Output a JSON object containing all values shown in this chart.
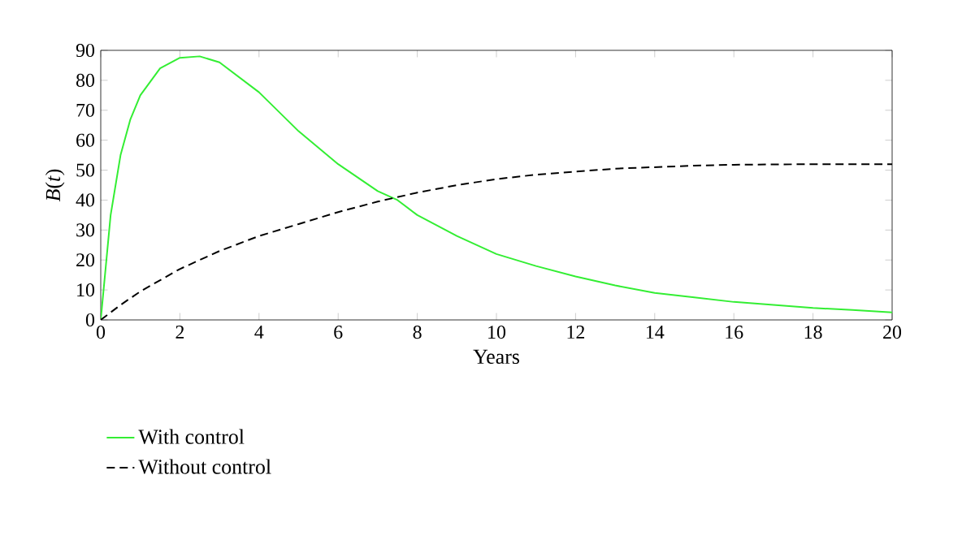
{
  "chart_data": {
    "type": "line",
    "xlabel": "Years",
    "ylabel": "*B*(*t*)",
    "xlim": [
      0,
      20
    ],
    "ylim": [
      0,
      90
    ],
    "xticks": [
      0,
      2,
      4,
      6,
      8,
      10,
      12,
      14,
      16,
      18,
      20
    ],
    "yticks": [
      0,
      10,
      20,
      30,
      40,
      50,
      60,
      70,
      80,
      90
    ],
    "legend": "bottom left",
    "series": [
      {
        "name": "With control",
        "color": "#33ee33",
        "line_style": "solid",
        "x": [
          0,
          0.25,
          0.5,
          0.75,
          1,
          1.5,
          2,
          2.5,
          3,
          4,
          5,
          6,
          7,
          7.5,
          8,
          9,
          10,
          11,
          12,
          13,
          14,
          15,
          16,
          17,
          18,
          19,
          20
        ],
        "values": [
          0,
          35,
          55,
          67,
          75,
          84,
          87.5,
          88,
          86,
          76,
          63,
          52,
          43,
          40,
          35,
          28,
          22,
          18,
          14.5,
          11.5,
          9,
          7.5,
          6,
          5,
          4,
          3.3,
          2.5
        ]
      },
      {
        "name": "Without control",
        "color": "#000000",
        "line_style": "dashed",
        "x": [
          0,
          0.5,
          1,
          2,
          3,
          4,
          5,
          6,
          7,
          8,
          9,
          10,
          11,
          12,
          13,
          14,
          15,
          16,
          18,
          20
        ],
        "values": [
          0,
          5,
          9.5,
          17,
          23,
          28,
          32,
          36,
          39.5,
          42.5,
          45,
          47,
          48.5,
          49.5,
          50.5,
          51,
          51.5,
          51.8,
          52,
          52
        ]
      }
    ]
  }
}
